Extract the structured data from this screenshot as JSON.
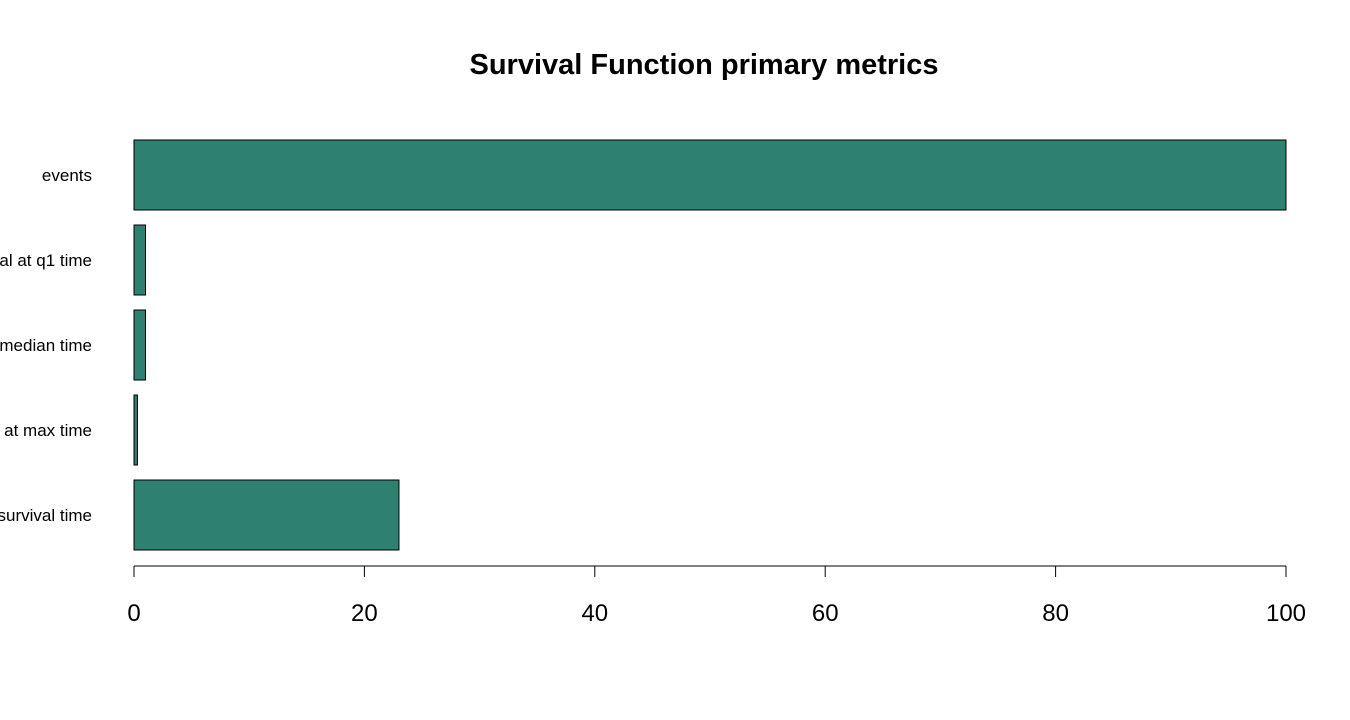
{
  "chart_data": {
    "type": "bar",
    "orientation": "horizontal",
    "title": "Survival Function primary metrics",
    "categories": [
      "events",
      "al at q1 time",
      "median time",
      "at max time",
      "survival time"
    ],
    "values": [
      100,
      1,
      1,
      0.3,
      23
    ],
    "xlim": [
      0,
      100
    ],
    "xticks": [
      0,
      20,
      40,
      60,
      80,
      100
    ],
    "xlabel": "",
    "ylabel": "",
    "grid": false,
    "colors": {
      "bar_fill": "#2e8070",
      "bar_stroke": "#000000",
      "axis": "#000000"
    }
  }
}
